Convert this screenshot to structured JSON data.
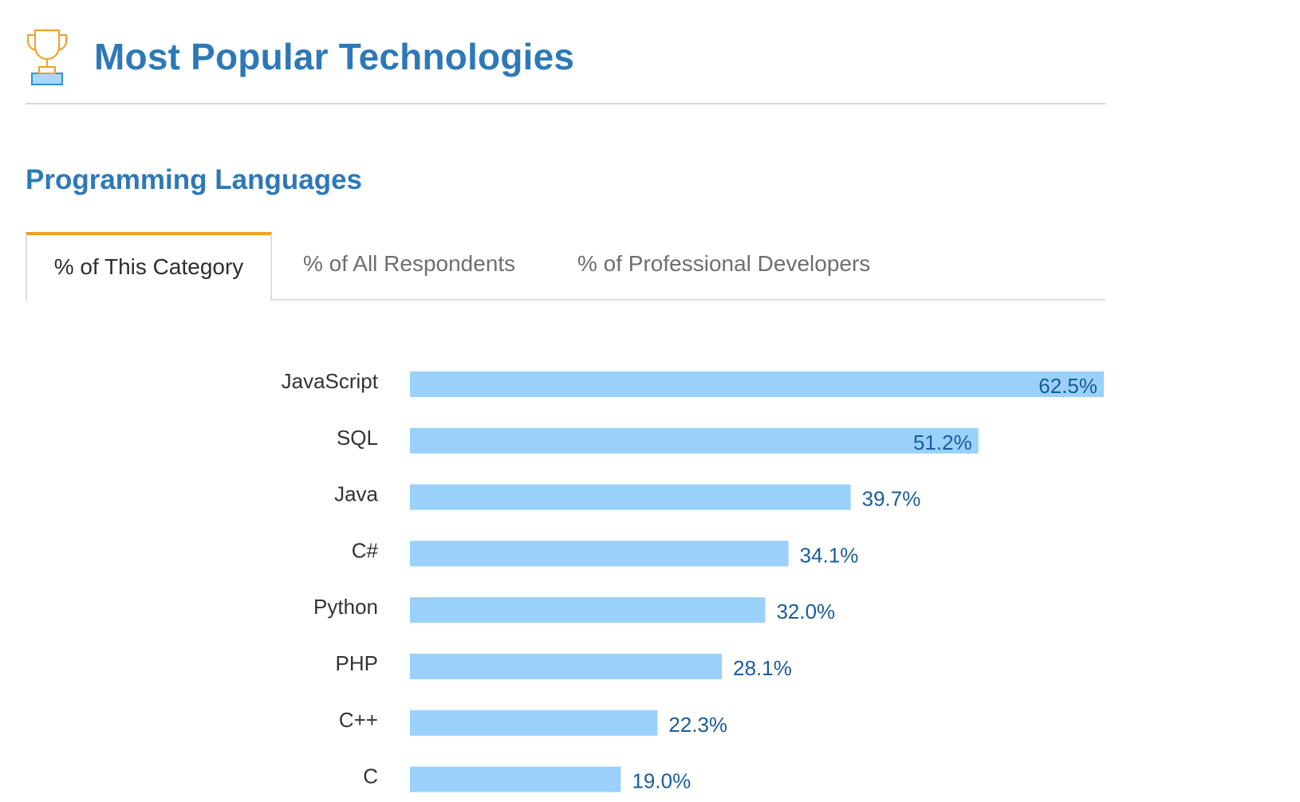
{
  "header": {
    "title": "Most Popular Technologies",
    "icon": "trophy-icon"
  },
  "section": {
    "title": "Programming Languages"
  },
  "tabs": [
    {
      "label": "% of This Category",
      "active": true
    },
    {
      "label": "% of All Respondents",
      "active": false
    },
    {
      "label": "% of Professional Developers",
      "active": false
    }
  ],
  "colors": {
    "accent": "#2d79b7",
    "tab_active_border": "#f39d28",
    "bar": "#99d1fa",
    "value_label": "#1a5c99",
    "category_label": "#333333"
  },
  "chart_data": {
    "type": "bar",
    "orientation": "horizontal",
    "categories": [
      "JavaScript",
      "SQL",
      "Java",
      "C#",
      "Python",
      "PHP",
      "C++",
      "C"
    ],
    "values": [
      62.5,
      51.2,
      39.7,
      34.1,
      32.0,
      28.1,
      22.3,
      19.0
    ],
    "value_labels": [
      "62.5%",
      "51.2%",
      "39.7%",
      "34.1%",
      "32.0%",
      "28.1%",
      "22.3%",
      "19.0%"
    ],
    "xlim": [
      0,
      62.5
    ],
    "grid": false,
    "legend": "none"
  }
}
